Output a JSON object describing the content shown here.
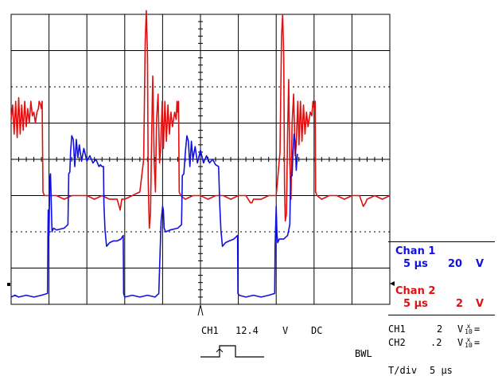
{
  "channel_1_box": {
    "title": "Chan 1",
    "timebase": "5 μs",
    "volts": "20",
    "unit": "V"
  },
  "channel_2_box": {
    "title": "Chan 2",
    "timebase": "5 μs",
    "volts": "2",
    "unit": "V"
  },
  "trigger": {
    "source": "CH1",
    "level": "12.4",
    "unit": "V",
    "coupling": "DC"
  },
  "probe_settings": [
    {
      "channel": "CH1",
      "volts": "2",
      "unit": "V",
      "fraction_top": "x",
      "fraction_bottom": "10",
      "eq": "="
    },
    {
      "channel": "CH2",
      "volts": ".2",
      "unit": "V",
      "fraction_top": "x",
      "fraction_bottom": "10",
      "eq": "="
    }
  ],
  "bwl_label": "BWL",
  "time_per_div": {
    "label": "T/div",
    "value": "5 μs"
  },
  "colors": {
    "channel_1": "#e01010",
    "channel_2": "#1010e0",
    "grid": "#000000"
  },
  "chart_data": {
    "type": "line",
    "x_unit": "μs",
    "x_range": [
      0,
      50
    ],
    "divisions": {
      "x": 10,
      "y": 8
    },
    "series": [
      {
        "name": "Chan 1",
        "color": "#e01010",
        "unit": "V",
        "points": [
          [
            0.0,
            5.1
          ],
          [
            0.2,
            5.5
          ],
          [
            0.4,
            4.7
          ],
          [
            0.6,
            5.6
          ],
          [
            0.8,
            4.6
          ],
          [
            1.0,
            5.7
          ],
          [
            1.2,
            4.7
          ],
          [
            1.4,
            5.5
          ],
          [
            1.6,
            4.8
          ],
          [
            1.8,
            5.6
          ],
          [
            2.0,
            4.9
          ],
          [
            2.2,
            5.4
          ],
          [
            2.4,
            5.0
          ],
          [
            2.6,
            5.6
          ],
          [
            2.8,
            5.2
          ],
          [
            3.0,
            5.3
          ],
          [
            3.2,
            5.0
          ],
          [
            3.4,
            5.3
          ],
          [
            3.6,
            5.4
          ],
          [
            3.7,
            5.6
          ],
          [
            3.9,
            5.5
          ],
          [
            4.0,
            5.4
          ],
          [
            4.1,
            5.6
          ],
          [
            4.2,
            3.1
          ],
          [
            4.4,
            3.0
          ],
          [
            5.0,
            3.0
          ],
          [
            6.0,
            3.0
          ],
          [
            7.0,
            2.9
          ],
          [
            8.0,
            3.0
          ],
          [
            9.0,
            3.0
          ],
          [
            10.0,
            3.0
          ],
          [
            11.0,
            2.9
          ],
          [
            12.0,
            3.0
          ],
          [
            13.0,
            2.9
          ],
          [
            14.0,
            2.9
          ],
          [
            14.4,
            2.6
          ],
          [
            14.6,
            2.9
          ],
          [
            15.0,
            2.9
          ],
          [
            16.0,
            3.0
          ],
          [
            17.0,
            3.1
          ],
          [
            17.5,
            4.0
          ],
          [
            17.7,
            7.2
          ],
          [
            17.85,
            8.1
          ],
          [
            18.0,
            6.9
          ],
          [
            18.1,
            3.4
          ],
          [
            18.25,
            2.1
          ],
          [
            18.4,
            2.5
          ],
          [
            18.55,
            4.6
          ],
          [
            18.7,
            6.3
          ],
          [
            18.9,
            3.9
          ],
          [
            19.05,
            3.1
          ],
          [
            19.2,
            5.1
          ],
          [
            19.4,
            5.8
          ],
          [
            19.6,
            3.9
          ],
          [
            19.75,
            4.3
          ],
          [
            19.95,
            5.6
          ],
          [
            20.1,
            4.3
          ],
          [
            20.3,
            5.6
          ],
          [
            20.5,
            4.5
          ],
          [
            20.7,
            5.5
          ],
          [
            20.9,
            4.7
          ],
          [
            21.1,
            5.3
          ],
          [
            21.3,
            4.9
          ],
          [
            21.6,
            5.3
          ],
          [
            21.8,
            5.1
          ],
          [
            21.9,
            5.6
          ],
          [
            22.0,
            5.3
          ],
          [
            22.1,
            5.6
          ],
          [
            22.2,
            3.1
          ],
          [
            22.4,
            3.0
          ],
          [
            23.0,
            2.9
          ],
          [
            24.0,
            3.0
          ],
          [
            25.0,
            3.0
          ],
          [
            26.0,
            2.9
          ],
          [
            27.0,
            3.0
          ],
          [
            28.0,
            3.0
          ],
          [
            29.0,
            2.9
          ],
          [
            30.0,
            3.0
          ],
          [
            31.0,
            3.0
          ],
          [
            31.6,
            2.8
          ],
          [
            31.8,
            2.8
          ],
          [
            32.0,
            2.9
          ],
          [
            33.0,
            2.9
          ],
          [
            34.0,
            3.0
          ],
          [
            35.0,
            3.0
          ],
          [
            35.5,
            4.2
          ],
          [
            35.7,
            7.4
          ],
          [
            35.85,
            8.0
          ],
          [
            36.0,
            6.8
          ],
          [
            36.1,
            3.2
          ],
          [
            36.2,
            2.3
          ],
          [
            36.35,
            2.5
          ],
          [
            36.5,
            4.7
          ],
          [
            36.65,
            6.2
          ],
          [
            36.8,
            3.9
          ],
          [
            36.95,
            2.9
          ],
          [
            37.1,
            5.0
          ],
          [
            37.3,
            5.8
          ],
          [
            37.5,
            4.1
          ],
          [
            37.65,
            4.4
          ],
          [
            37.85,
            5.6
          ],
          [
            38.0,
            4.4
          ],
          [
            38.2,
            5.6
          ],
          [
            38.4,
            4.5
          ],
          [
            38.6,
            5.5
          ],
          [
            38.8,
            4.7
          ],
          [
            39.0,
            5.3
          ],
          [
            39.2,
            4.9
          ],
          [
            39.5,
            5.3
          ],
          [
            39.7,
            5.2
          ],
          [
            39.85,
            5.6
          ],
          [
            40.0,
            5.4
          ],
          [
            40.15,
            5.6
          ],
          [
            40.2,
            3.1
          ],
          [
            40.4,
            3.0
          ],
          [
            41.0,
            2.9
          ],
          [
            42.0,
            3.0
          ],
          [
            43.0,
            3.0
          ],
          [
            44.0,
            2.9
          ],
          [
            45.0,
            3.0
          ],
          [
            46.0,
            3.0
          ],
          [
            46.5,
            2.7
          ],
          [
            46.8,
            2.8
          ],
          [
            47.0,
            2.9
          ],
          [
            48.0,
            3.0
          ],
          [
            49.0,
            2.9
          ],
          [
            50.0,
            3.0
          ]
        ]
      },
      {
        "name": "Chan 2",
        "color": "#1010e0",
        "unit": "V",
        "points": [
          [
            0.0,
            0.2
          ],
          [
            0.5,
            0.25
          ],
          [
            1.0,
            0.2
          ],
          [
            2.0,
            0.25
          ],
          [
            3.0,
            0.2
          ],
          [
            4.0,
            0.25
          ],
          [
            4.8,
            0.3
          ],
          [
            4.85,
            1.8
          ],
          [
            4.9,
            2.6
          ],
          [
            5.0,
            1.9
          ],
          [
            5.1,
            3.5
          ],
          [
            5.2,
            3.6
          ],
          [
            5.4,
            2.0
          ],
          [
            5.6,
            2.1
          ],
          [
            6.0,
            2.05
          ],
          [
            7.0,
            2.1
          ],
          [
            7.5,
            2.2
          ],
          [
            7.6,
            3.6
          ],
          [
            7.75,
            3.65
          ],
          [
            7.85,
            4.2
          ],
          [
            8.0,
            4.65
          ],
          [
            8.2,
            4.55
          ],
          [
            8.4,
            3.8
          ],
          [
            8.6,
            4.55
          ],
          [
            8.8,
            4.05
          ],
          [
            9.0,
            4.4
          ],
          [
            9.3,
            3.95
          ],
          [
            9.6,
            4.3
          ],
          [
            10.0,
            3.95
          ],
          [
            10.4,
            4.1
          ],
          [
            10.8,
            3.9
          ],
          [
            11.2,
            4.0
          ],
          [
            11.6,
            3.8
          ],
          [
            11.8,
            3.85
          ],
          [
            12.0,
            3.8
          ],
          [
            12.2,
            3.8
          ],
          [
            12.25,
            2.8
          ],
          [
            12.4,
            2.05
          ],
          [
            12.6,
            1.6
          ],
          [
            13.0,
            1.7
          ],
          [
            13.5,
            1.75
          ],
          [
            14.0,
            1.75
          ],
          [
            14.5,
            1.8
          ],
          [
            14.8,
            1.9
          ],
          [
            14.85,
            0.3
          ],
          [
            15.0,
            0.2
          ],
          [
            16.0,
            0.25
          ],
          [
            17.0,
            0.2
          ],
          [
            18.0,
            0.25
          ],
          [
            19.0,
            0.2
          ],
          [
            19.5,
            0.3
          ],
          [
            19.6,
            1.0
          ],
          [
            19.8,
            2.3
          ],
          [
            20.0,
            2.7
          ],
          [
            20.1,
            2.6
          ],
          [
            20.2,
            2.1
          ],
          [
            20.4,
            2.0
          ],
          [
            21.0,
            2.05
          ],
          [
            22.0,
            2.1
          ],
          [
            22.5,
            2.2
          ],
          [
            22.6,
            3.55
          ],
          [
            22.8,
            3.6
          ],
          [
            23.0,
            4.2
          ],
          [
            23.2,
            4.65
          ],
          [
            23.4,
            4.5
          ],
          [
            23.6,
            3.8
          ],
          [
            23.8,
            4.5
          ],
          [
            24.0,
            4.0
          ],
          [
            24.3,
            4.35
          ],
          [
            24.6,
            3.9
          ],
          [
            25.0,
            4.25
          ],
          [
            25.4,
            3.9
          ],
          [
            25.8,
            4.1
          ],
          [
            26.2,
            3.9
          ],
          [
            26.6,
            4.0
          ],
          [
            27.0,
            3.85
          ],
          [
            27.4,
            3.8
          ],
          [
            27.55,
            2.7
          ],
          [
            27.7,
            2.05
          ],
          [
            27.9,
            1.6
          ],
          [
            28.3,
            1.7
          ],
          [
            28.8,
            1.75
          ],
          [
            29.4,
            1.8
          ],
          [
            29.9,
            1.9
          ],
          [
            29.95,
            0.3
          ],
          [
            30.1,
            0.25
          ],
          [
            31.0,
            0.2
          ],
          [
            32.0,
            0.25
          ],
          [
            33.0,
            0.2
          ],
          [
            34.0,
            0.25
          ],
          [
            34.8,
            0.3
          ],
          [
            34.85,
            1.6
          ],
          [
            35.0,
            2.7
          ],
          [
            35.1,
            1.9
          ],
          [
            35.2,
            1.7
          ],
          [
            35.4,
            1.8
          ],
          [
            36.0,
            1.8
          ],
          [
            36.5,
            1.9
          ],
          [
            36.8,
            2.2
          ],
          [
            36.9,
            3.5
          ],
          [
            37.1,
            3.55
          ],
          [
            37.2,
            4.1
          ],
          [
            37.35,
            4.7
          ],
          [
            37.5,
            4.5
          ],
          [
            37.65,
            3.7
          ],
          [
            37.8,
            4.15
          ]
        ]
      }
    ]
  }
}
